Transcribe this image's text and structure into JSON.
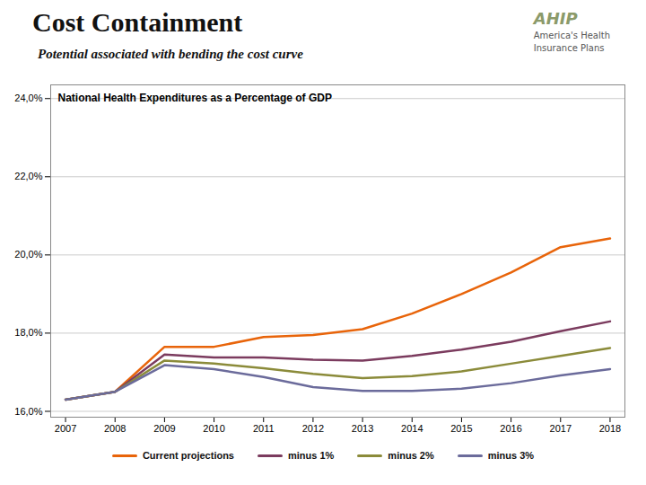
{
  "chart_data": {
    "type": "line",
    "title": "Cost Containment",
    "subtitle": "Potential associated with bending the cost curve",
    "annotations": [
      "National Health Expenditures as a Percentage of GDP",
      "AHIP",
      "America's Health\nInsurance Plans"
    ],
    "x": [
      2007,
      2008,
      2009,
      2010,
      2011,
      2012,
      2013,
      2014,
      2015,
      2016,
      2017,
      2018
    ],
    "series": [
      {
        "name": "Current projections",
        "color": "#E8640A",
        "values": [
          16.3,
          16.5,
          17.65,
          17.65,
          17.9,
          17.95,
          18.1,
          18.5,
          19.0,
          19.55,
          20.2,
          20.42
        ]
      },
      {
        "name": "minus 1%",
        "color": "#7B3B5E",
        "values": [
          16.3,
          16.5,
          17.45,
          17.38,
          17.38,
          17.32,
          17.3,
          17.42,
          17.58,
          17.78,
          18.05,
          18.3
        ]
      },
      {
        "name": "minus 2%",
        "color": "#8B8B3A",
        "values": [
          16.3,
          16.5,
          17.3,
          17.22,
          17.1,
          16.96,
          16.85,
          16.9,
          17.02,
          17.22,
          17.42,
          17.62
        ]
      },
      {
        "name": "minus 3%",
        "color": "#6B6B9B",
        "values": [
          16.3,
          16.5,
          17.18,
          17.08,
          16.88,
          16.62,
          16.52,
          16.52,
          16.58,
          16.72,
          16.92,
          17.08
        ]
      }
    ],
    "xlim": [
      2006.7,
      2018.3
    ],
    "xticks": [
      2007,
      2008,
      2009,
      2010,
      2011,
      2012,
      2013,
      2014,
      2015,
      2016,
      2017,
      2018
    ],
    "ylim": [
      15.85,
      24.35
    ],
    "yticks": [
      {
        "value": 16.0,
        "label": "16,0%"
      },
      {
        "value": 18.0,
        "label": "18,0%"
      },
      {
        "value": 20.0,
        "label": "20,0%"
      },
      {
        "value": 22.0,
        "label": "22,0%"
      },
      {
        "value": 24.0,
        "label": "24,0%"
      }
    ],
    "grid": true,
    "legend": "bottom"
  }
}
